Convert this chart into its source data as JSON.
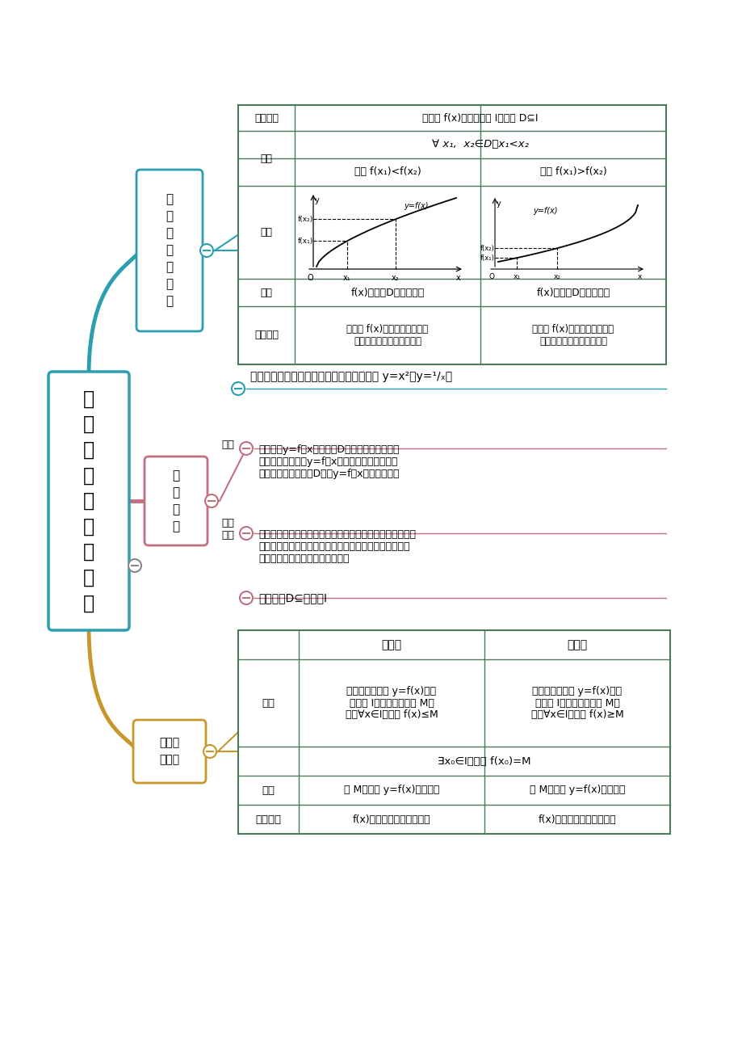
{
  "bg_color": "#ffffff",
  "main_title": "函数的单调性与最值",
  "main_color": "#2B9FAF",
  "b1_label": "增\n函\n数\n与\n减\n函\n数",
  "b1_color": "#2B9FAF",
  "b2_label": "单\n调\n区\n间",
  "b2_color": "#C07080",
  "b3_label": "最大值\n最小值",
  "b3_color": "#C8972B",
  "tbl_border": "#4A7A5A",
  "fig_w": 9.2,
  "fig_h": 13.02,
  "dpi": 100
}
